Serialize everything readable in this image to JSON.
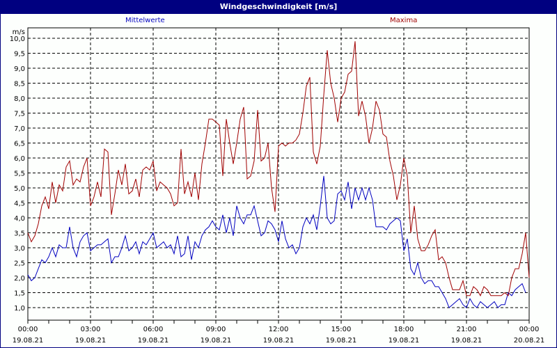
{
  "title": "Windgeschwindigkeit [m/s]",
  "legend": {
    "mean": "Mittelwerte",
    "max": "Maxima"
  },
  "colors": {
    "titlebar": "#000080",
    "mean": "#0000c0",
    "max": "#a00000",
    "grid": "#000000"
  },
  "chart_data": {
    "type": "line",
    "title": "Windgeschwindigkeit [m/s]",
    "xlabel": "",
    "ylabel": "m/s",
    "ylim": [
      0.7,
      10.3
    ],
    "grid": true,
    "legend_position": "top",
    "y_ticks": [
      "10,0",
      "9,5",
      "9,0",
      "8,5",
      "8,0",
      "7,5",
      "7,0",
      "6,5",
      "6,0",
      "5,5",
      "5,0",
      "4,5",
      "4,0",
      "3,5",
      "3,0",
      "2,5",
      "2,0",
      "1,5",
      "1,0"
    ],
    "x_ticks": [
      {
        "time": "00:00",
        "date": "19.08.21"
      },
      {
        "time": "03:00",
        "date": "19.08.21"
      },
      {
        "time": "06:00",
        "date": "19.08.21"
      },
      {
        "time": "09:00",
        "date": "19.08.21"
      },
      {
        "time": "12:00",
        "date": "19.08.21"
      },
      {
        "time": "15:00",
        "date": "19.08.21"
      },
      {
        "time": "18:00",
        "date": "19.08.21"
      },
      {
        "time": "21:00",
        "date": "19.08.21"
      },
      {
        "time": "00:00",
        "date": "20.08.21"
      }
    ],
    "x_interval_minutes": 10,
    "series": [
      {
        "name": "Mittelwerte",
        "values": [
          2.1,
          1.9,
          2.0,
          2.3,
          2.6,
          2.5,
          2.7,
          3.0,
          2.7,
          3.1,
          3.0,
          3.0,
          3.7,
          3.0,
          2.7,
          3.2,
          3.4,
          3.5,
          2.9,
          3.0,
          3.1,
          3.1,
          3.2,
          3.3,
          2.5,
          2.7,
          2.7,
          3.0,
          3.4,
          2.9,
          3.0,
          3.2,
          2.8,
          3.2,
          3.1,
          3.3,
          3.5,
          3.0,
          3.1,
          3.2,
          3.0,
          3.1,
          2.8,
          3.4,
          2.7,
          2.8,
          3.4,
          2.6,
          3.2,
          3.0,
          3.4,
          3.6,
          3.7,
          3.9,
          3.7,
          3.6,
          4.1,
          3.5,
          4.0,
          3.4,
          4.4,
          4.0,
          3.8,
          4.1,
          4.1,
          4.4,
          3.9,
          3.4,
          3.5,
          3.9,
          3.8,
          3.6,
          3.2,
          3.9,
          3.3,
          3.0,
          3.1,
          2.8,
          3.0,
          3.7,
          4.0,
          3.8,
          4.1,
          3.6,
          4.4,
          5.4,
          4.0,
          3.8,
          3.9,
          4.8,
          4.9,
          4.6,
          5.2,
          4.3,
          5.0,
          4.6,
          5.0,
          4.6,
          5.0,
          4.6,
          3.7,
          3.7,
          3.7,
          3.6,
          3.8,
          3.9,
          4.0,
          3.9,
          2.9,
          3.3,
          2.3,
          2.1,
          2.5,
          2.0,
          1.8,
          1.9,
          1.9,
          1.7,
          1.7,
          1.5,
          1.3,
          1.0,
          1.1,
          1.2,
          1.3,
          1.1,
          1.0,
          1.3,
          1.1,
          1.0,
          1.2,
          1.1,
          1.0,
          1.1,
          1.2,
          1.0,
          1.1,
          1.1,
          1.5,
          1.4,
          1.6,
          1.7,
          1.8,
          1.5
        ]
      },
      {
        "name": "Maxima",
        "values": [
          3.5,
          3.2,
          3.4,
          3.8,
          4.4,
          4.7,
          4.3,
          5.2,
          4.5,
          5.1,
          4.9,
          5.7,
          5.9,
          5.1,
          5.3,
          5.2,
          5.7,
          6.0,
          4.4,
          4.7,
          5.2,
          4.7,
          6.3,
          6.2,
          4.1,
          4.8,
          5.6,
          5.1,
          5.8,
          4.8,
          4.9,
          5.3,
          4.7,
          5.6,
          5.7,
          5.6,
          5.9,
          4.9,
          5.2,
          5.1,
          5.0,
          4.8,
          4.4,
          4.5,
          6.3,
          4.8,
          5.2,
          4.7,
          5.5,
          4.6,
          5.8,
          6.5,
          7.3,
          7.3,
          7.2,
          7.1,
          5.4,
          7.3,
          6.5,
          5.8,
          6.5,
          7.3,
          7.7,
          5.3,
          5.4,
          5.9,
          7.6,
          5.9,
          6.0,
          6.5,
          5.0,
          4.2,
          6.4,
          6.5,
          6.4,
          6.5,
          6.5,
          6.6,
          6.8,
          7.5,
          8.4,
          8.7,
          6.2,
          5.8,
          6.4,
          8.1,
          9.6,
          8.5,
          8.0,
          7.2,
          8.0,
          8.2,
          8.8,
          8.9,
          9.9,
          7.4,
          7.9,
          7.4,
          6.5,
          7.0,
          7.9,
          7.6,
          6.8,
          6.7,
          5.9,
          5.4,
          4.6,
          5.1,
          6.0,
          5.4,
          3.5,
          4.4,
          3.3,
          2.9,
          2.9,
          3.1,
          3.4,
          3.6,
          2.6,
          2.7,
          2.5,
          2.0,
          1.6,
          1.6,
          1.6,
          1.9,
          1.4,
          1.4,
          1.7,
          1.6,
          1.4,
          1.7,
          1.6,
          1.4,
          1.4,
          1.4,
          1.4,
          1.5,
          1.4,
          2.0,
          2.3,
          2.3,
          2.8,
          3.5,
          2.0
        ]
      }
    ]
  }
}
